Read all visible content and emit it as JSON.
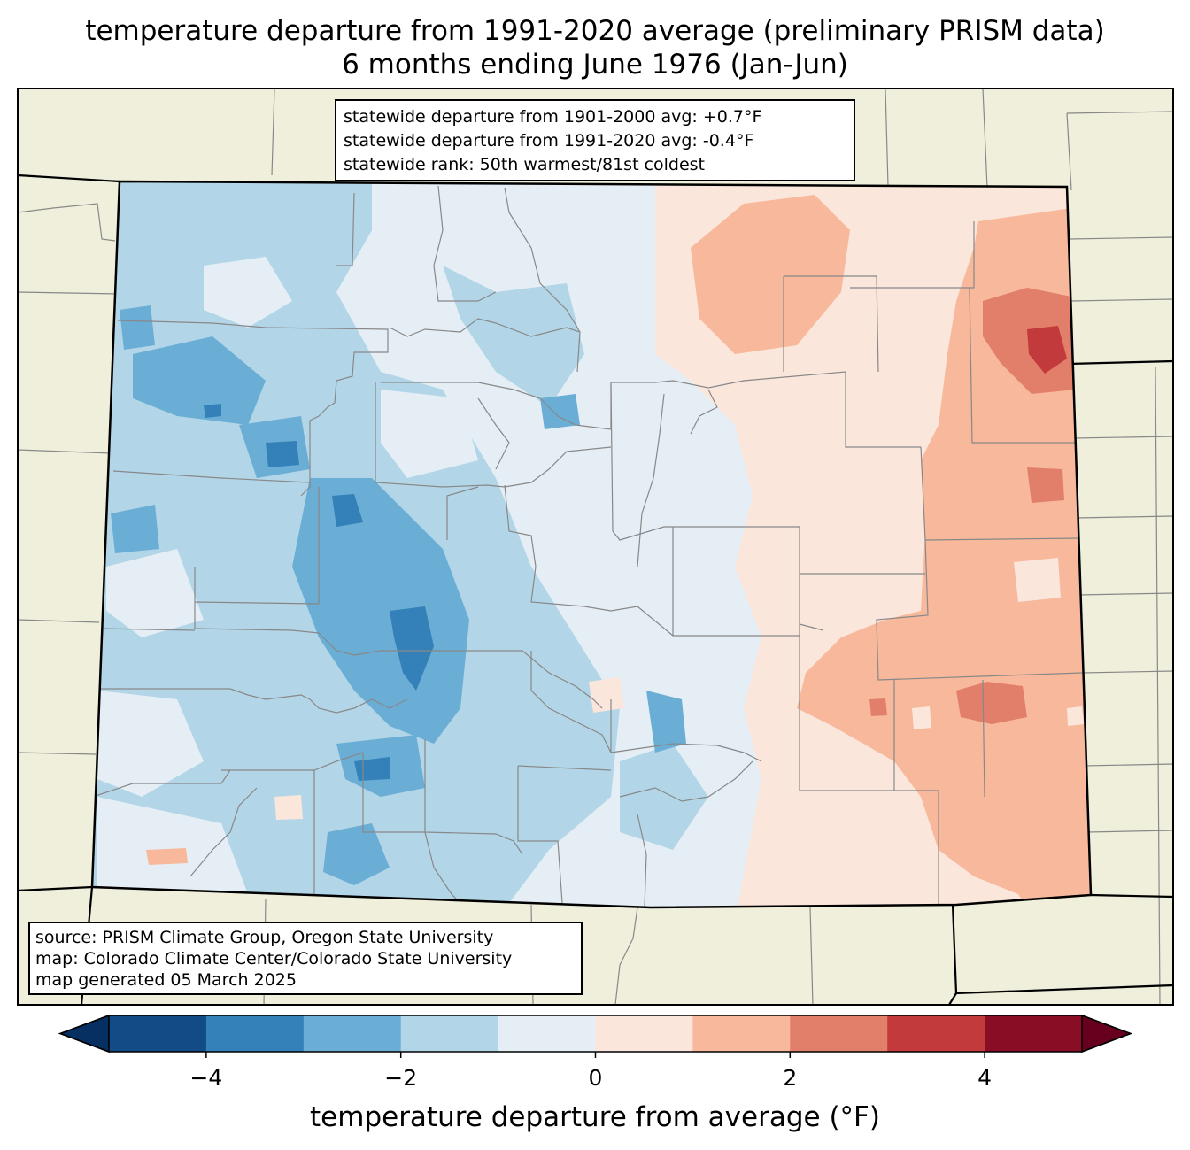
{
  "title": {
    "line1": "temperature departure from 1991-2020 average (preliminary PRISM data)",
    "line2": "6 months ending June 1976 (Jan-Jun)"
  },
  "stats": {
    "line1": "statewide departure from 1901-2000 avg: +0.7°F",
    "line2": "statewide departure from 1991-2020 avg: -0.4°F",
    "line3": "statewide rank: 50th warmest/81st coldest"
  },
  "source": {
    "line1": "source: PRISM Climate Group, Oregon State University",
    "line2": "map: Colorado Climate Center/Colorado State University",
    "line3": "map generated 05 March 2025"
  },
  "colorbar": {
    "label": "temperature departure from average (°F)",
    "ticks": [
      "−4",
      "−2",
      "0",
      "2",
      "4"
    ],
    "tick_values": [
      -4,
      -2,
      0,
      2,
      4
    ],
    "bins": [
      {
        "from": -5,
        "to": -4,
        "color": "#134b87"
      },
      {
        "from": -4,
        "to": -3,
        "color": "#3480b9"
      },
      {
        "from": -3,
        "to": -2,
        "color": "#6aadd5"
      },
      {
        "from": -2,
        "to": -1,
        "color": "#b2d6e8"
      },
      {
        "from": -1,
        "to": 0,
        "color": "#e5eef5"
      },
      {
        "from": 0,
        "to": 1,
        "color": "#fbe6dc"
      },
      {
        "from": 1,
        "to": 2,
        "color": "#f7b89c"
      },
      {
        "from": 2,
        "to": 3,
        "color": "#e27f6a"
      },
      {
        "from": 3,
        "to": 4,
        "color": "#c23a3b"
      },
      {
        "from": 4,
        "to": 5,
        "color": "#890d24"
      }
    ],
    "under_color": "#053061",
    "over_color": "#67001f"
  },
  "map_colors": {
    "land": "#efefdc",
    "county_line": "#888888",
    "state_line": "#000000"
  }
}
